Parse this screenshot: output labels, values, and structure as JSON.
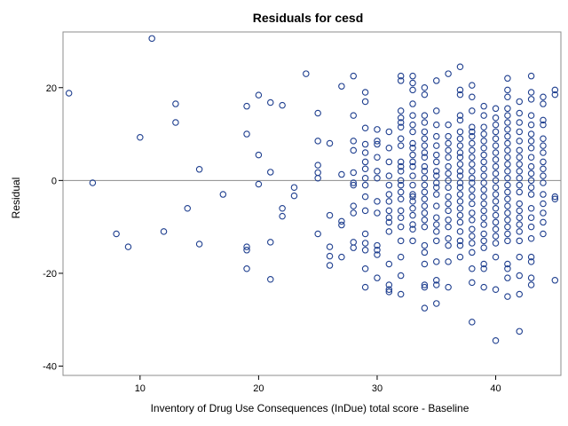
{
  "chart_data": {
    "type": "scatter",
    "title": "Residuals for cesd",
    "xlabel": "Inventory of Drug Use Consequences (InDue) total score - Baseline",
    "ylabel": "Residual",
    "xlim": [
      3.5,
      45.5
    ],
    "ylim": [
      -42,
      32
    ],
    "xticks": [
      10,
      20,
      30,
      40
    ],
    "yticks": [
      -40,
      -20,
      0,
      20
    ],
    "reference_line_y": 0,
    "grid": false,
    "marker_color": "#1f3f8f",
    "points": [
      [
        4,
        18.8
      ],
      [
        6,
        -0.5
      ],
      [
        8,
        -11.5
      ],
      [
        9,
        -14.3
      ],
      [
        10,
        9.3
      ],
      [
        11,
        30.6
      ],
      [
        12,
        -11
      ],
      [
        13,
        16.5
      ],
      [
        13,
        12.5
      ],
      [
        14,
        -6
      ],
      [
        15,
        2.4
      ],
      [
        15,
        -13.7
      ],
      [
        17,
        -3
      ],
      [
        19,
        16
      ],
      [
        19,
        10
      ],
      [
        19,
        -14.3
      ],
      [
        19,
        -15
      ],
      [
        19,
        -19
      ],
      [
        20,
        18.4
      ],
      [
        20,
        5.5
      ],
      [
        20,
        -0.8
      ],
      [
        21,
        16.8
      ],
      [
        21,
        1.8
      ],
      [
        21,
        -13.3
      ],
      [
        21,
        -21.3
      ],
      [
        22,
        16.2
      ],
      [
        22,
        -6
      ],
      [
        22,
        -7.7
      ],
      [
        23,
        -1.5
      ],
      [
        23,
        -3.3
      ],
      [
        24,
        23
      ],
      [
        25,
        14.5
      ],
      [
        25,
        8.5
      ],
      [
        25,
        3.3
      ],
      [
        25,
        1.7
      ],
      [
        25,
        0.5
      ],
      [
        25,
        -11.5
      ],
      [
        26,
        8
      ],
      [
        26,
        -7.5
      ],
      [
        26,
        -14.3
      ],
      [
        26,
        -16.3
      ],
      [
        26,
        -18.3
      ],
      [
        27,
        20.3
      ],
      [
        27,
        1.3
      ],
      [
        27,
        -8.8
      ],
      [
        27,
        -9.6
      ],
      [
        27,
        -16.5
      ],
      [
        28,
        22.5
      ],
      [
        28,
        14
      ],
      [
        28,
        8.5
      ],
      [
        28,
        6.5
      ],
      [
        28,
        1.7
      ],
      [
        28,
        -0.5
      ],
      [
        28,
        -1
      ],
      [
        28,
        -5.5
      ],
      [
        28,
        -7
      ],
      [
        28,
        -13.3
      ],
      [
        28,
        -14.5
      ],
      [
        29,
        19
      ],
      [
        29,
        17
      ],
      [
        29,
        11.3
      ],
      [
        29,
        7.8
      ],
      [
        29,
        6
      ],
      [
        29,
        4
      ],
      [
        29,
        2.5
      ],
      [
        29,
        0.5
      ],
      [
        29,
        -1
      ],
      [
        29,
        -3.5
      ],
      [
        29,
        -6.5
      ],
      [
        29,
        -11.5
      ],
      [
        29,
        -13.5
      ],
      [
        29,
        -15
      ],
      [
        29,
        -19
      ],
      [
        29,
        -23
      ],
      [
        30,
        11
      ],
      [
        30,
        8.5
      ],
      [
        30,
        7.8
      ],
      [
        30,
        5
      ],
      [
        30,
        2
      ],
      [
        30,
        0.5
      ],
      [
        30,
        -4.5
      ],
      [
        30,
        -7
      ],
      [
        30,
        -14
      ],
      [
        30,
        -15
      ],
      [
        30,
        -16
      ],
      [
        30,
        -21
      ],
      [
        31,
        10.5
      ],
      [
        31,
        7
      ],
      [
        31,
        4
      ],
      [
        31,
        1
      ],
      [
        31,
        -1
      ],
      [
        31,
        -3
      ],
      [
        31,
        -4.5
      ],
      [
        31,
        -6.5
      ],
      [
        31,
        -8
      ],
      [
        31,
        -9
      ],
      [
        31,
        -11
      ],
      [
        31,
        -18
      ],
      [
        31,
        -22.5
      ],
      [
        31,
        -23.5
      ],
      [
        31,
        -24
      ],
      [
        32,
        21.5
      ],
      [
        32,
        22.5
      ],
      [
        32,
        15
      ],
      [
        32,
        13.5
      ],
      [
        32,
        12.5
      ],
      [
        32,
        11.5
      ],
      [
        32,
        9
      ],
      [
        32,
        7.5
      ],
      [
        32,
        4
      ],
      [
        32,
        3
      ],
      [
        32,
        2
      ],
      [
        32,
        0
      ],
      [
        32,
        -1
      ],
      [
        32,
        -2.5
      ],
      [
        32,
        -4
      ],
      [
        32,
        -6.5
      ],
      [
        32,
        -8
      ],
      [
        32,
        -10
      ],
      [
        32,
        -13
      ],
      [
        32,
        -16.5
      ],
      [
        32,
        -20.5
      ],
      [
        32,
        -24.5
      ],
      [
        33,
        22.5
      ],
      [
        33,
        21
      ],
      [
        33,
        19.5
      ],
      [
        33,
        16.5
      ],
      [
        33,
        14
      ],
      [
        33,
        12
      ],
      [
        33,
        10.5
      ],
      [
        33,
        8
      ],
      [
        33,
        7
      ],
      [
        33,
        5.5
      ],
      [
        33,
        4
      ],
      [
        33,
        3
      ],
      [
        33,
        1
      ],
      [
        33,
        -1
      ],
      [
        33,
        -3
      ],
      [
        33,
        -3.5
      ],
      [
        33,
        -4.5
      ],
      [
        33,
        -6
      ],
      [
        33,
        -7.5
      ],
      [
        33,
        -9.5
      ],
      [
        33,
        -10.5
      ],
      [
        33,
        -13
      ],
      [
        34,
        20
      ],
      [
        34,
        18.5
      ],
      [
        34,
        14
      ],
      [
        34,
        12.5
      ],
      [
        34,
        10.5
      ],
      [
        34,
        9
      ],
      [
        34,
        7.5
      ],
      [
        34,
        6
      ],
      [
        34,
        5
      ],
      [
        34,
        3
      ],
      [
        34,
        2
      ],
      [
        34,
        0.5
      ],
      [
        34,
        -1
      ],
      [
        34,
        -2.5
      ],
      [
        34,
        -4
      ],
      [
        34,
        -5.5
      ],
      [
        34,
        -7
      ],
      [
        34,
        -8.5
      ],
      [
        34,
        -10
      ],
      [
        34,
        -14
      ],
      [
        34,
        -15.5
      ],
      [
        34,
        -18
      ],
      [
        34,
        -22.5
      ],
      [
        34,
        -23
      ],
      [
        34,
        -27.5
      ],
      [
        35,
        21.5
      ],
      [
        35,
        15
      ],
      [
        35,
        12
      ],
      [
        35,
        9.5
      ],
      [
        35,
        7.5
      ],
      [
        35,
        5.5
      ],
      [
        35,
        4
      ],
      [
        35,
        2
      ],
      [
        35,
        1
      ],
      [
        35,
        -0.5
      ],
      [
        35,
        -1.5
      ],
      [
        35,
        -3
      ],
      [
        35,
        -5.5
      ],
      [
        35,
        -8
      ],
      [
        35,
        -9.5
      ],
      [
        35,
        -11
      ],
      [
        35,
        -13
      ],
      [
        35,
        -17.5
      ],
      [
        35,
        -21.5
      ],
      [
        35,
        -22.5
      ],
      [
        35,
        -26.5
      ],
      [
        36,
        23
      ],
      [
        36,
        12
      ],
      [
        36,
        9.5
      ],
      [
        36,
        8
      ],
      [
        36,
        6.5
      ],
      [
        36,
        5
      ],
      [
        36,
        3
      ],
      [
        36,
        1.5
      ],
      [
        36,
        0
      ],
      [
        36,
        -1.5
      ],
      [
        36,
        -3.5
      ],
      [
        36,
        -5
      ],
      [
        36,
        -6.5
      ],
      [
        36,
        -8.5
      ],
      [
        36,
        -10
      ],
      [
        36,
        -12.5
      ],
      [
        36,
        -14
      ],
      [
        36,
        -17.5
      ],
      [
        36,
        -23
      ],
      [
        37,
        24.5
      ],
      [
        37,
        19.5
      ],
      [
        37,
        18.5
      ],
      [
        37,
        14
      ],
      [
        37,
        13
      ],
      [
        37,
        10.5
      ],
      [
        37,
        9
      ],
      [
        37,
        7.5
      ],
      [
        37,
        6
      ],
      [
        37,
        5
      ],
      [
        37,
        3.5
      ],
      [
        37,
        2
      ],
      [
        37,
        1
      ],
      [
        37,
        -0.5
      ],
      [
        37,
        -1.5
      ],
      [
        37,
        -3
      ],
      [
        37,
        -4.5
      ],
      [
        37,
        -6
      ],
      [
        37,
        -7.5
      ],
      [
        37,
        -9
      ],
      [
        37,
        -11
      ],
      [
        37,
        -13
      ],
      [
        37,
        -14
      ],
      [
        37,
        -16.5
      ],
      [
        38,
        20.5
      ],
      [
        38,
        18
      ],
      [
        38,
        15
      ],
      [
        38,
        11.5
      ],
      [
        38,
        10.5
      ],
      [
        38,
        9.5
      ],
      [
        38,
        8
      ],
      [
        38,
        6.5
      ],
      [
        38,
        5
      ],
      [
        38,
        3.5
      ],
      [
        38,
        2
      ],
      [
        38,
        0.5
      ],
      [
        38,
        -0.5
      ],
      [
        38,
        -2
      ],
      [
        38,
        -3.5
      ],
      [
        38,
        -5
      ],
      [
        38,
        -7
      ],
      [
        38,
        -8.5
      ],
      [
        38,
        -10.5
      ],
      [
        38,
        -12
      ],
      [
        38,
        -13.5
      ],
      [
        38,
        -15.5
      ],
      [
        38,
        -19
      ],
      [
        38,
        -22
      ],
      [
        38,
        -30.5
      ],
      [
        39,
        16
      ],
      [
        39,
        14
      ],
      [
        39,
        11.5
      ],
      [
        39,
        10
      ],
      [
        39,
        8.5
      ],
      [
        39,
        7
      ],
      [
        39,
        5.5
      ],
      [
        39,
        4
      ],
      [
        39,
        2.5
      ],
      [
        39,
        1
      ],
      [
        39,
        -0.5
      ],
      [
        39,
        -2
      ],
      [
        39,
        -3.5
      ],
      [
        39,
        -5
      ],
      [
        39,
        -6.5
      ],
      [
        39,
        -8
      ],
      [
        39,
        -9.5
      ],
      [
        39,
        -11.5
      ],
      [
        39,
        -13
      ],
      [
        39,
        -14.5
      ],
      [
        39,
        -18
      ],
      [
        39,
        -19
      ],
      [
        39,
        -23
      ],
      [
        40,
        15.5
      ],
      [
        40,
        13.5
      ],
      [
        40,
        12
      ],
      [
        40,
        10.5
      ],
      [
        40,
        9
      ],
      [
        40,
        7.5
      ],
      [
        40,
        6
      ],
      [
        40,
        4.5
      ],
      [
        40,
        3
      ],
      [
        40,
        1.5
      ],
      [
        40,
        0
      ],
      [
        40,
        -1.5
      ],
      [
        40,
        -3
      ],
      [
        40,
        -4.5
      ],
      [
        40,
        -6
      ],
      [
        40,
        -7.5
      ],
      [
        40,
        -9
      ],
      [
        40,
        -10.5
      ],
      [
        40,
        -12
      ],
      [
        40,
        -13.5
      ],
      [
        40,
        -16.5
      ],
      [
        40,
        -23.5
      ],
      [
        40,
        -34.5
      ],
      [
        41,
        22
      ],
      [
        41,
        19.5
      ],
      [
        41,
        18
      ],
      [
        41,
        15.5
      ],
      [
        41,
        14
      ],
      [
        41,
        12.5
      ],
      [
        41,
        11
      ],
      [
        41,
        9.5
      ],
      [
        41,
        8
      ],
      [
        41,
        6.5
      ],
      [
        41,
        5
      ],
      [
        41,
        3.5
      ],
      [
        41,
        2
      ],
      [
        41,
        0.5
      ],
      [
        41,
        -1
      ],
      [
        41,
        -2.5
      ],
      [
        41,
        -4
      ],
      [
        41,
        -5.5
      ],
      [
        41,
        -7
      ],
      [
        41,
        -8.5
      ],
      [
        41,
        -10
      ],
      [
        41,
        -11.5
      ],
      [
        41,
        -13
      ],
      [
        41,
        -18
      ],
      [
        41,
        -19
      ],
      [
        41,
        -21
      ],
      [
        41,
        -25
      ],
      [
        42,
        17
      ],
      [
        42,
        14.5
      ],
      [
        42,
        12.5
      ],
      [
        42,
        10.5
      ],
      [
        42,
        8.5
      ],
      [
        42,
        6.5
      ],
      [
        42,
        5
      ],
      [
        42,
        3.5
      ],
      [
        42,
        2
      ],
      [
        42,
        0.5
      ],
      [
        42,
        -1
      ],
      [
        42,
        -2.5
      ],
      [
        42,
        -5
      ],
      [
        42,
        -6.5
      ],
      [
        42,
        -8
      ],
      [
        42,
        -9.5
      ],
      [
        42,
        -11
      ],
      [
        42,
        -13
      ],
      [
        42,
        -16.5
      ],
      [
        42,
        -20.5
      ],
      [
        42,
        -24.5
      ],
      [
        42,
        -32.5
      ],
      [
        43,
        22.5
      ],
      [
        43,
        19
      ],
      [
        43,
        17.5
      ],
      [
        43,
        14
      ],
      [
        43,
        12
      ],
      [
        43,
        10
      ],
      [
        43,
        8.5
      ],
      [
        43,
        7
      ],
      [
        43,
        5
      ],
      [
        43,
        3
      ],
      [
        43,
        1.5
      ],
      [
        43,
        0
      ],
      [
        43,
        -1.5
      ],
      [
        43,
        -3
      ],
      [
        43,
        -6
      ],
      [
        43,
        -8
      ],
      [
        43,
        -10
      ],
      [
        43,
        -12.5
      ],
      [
        43,
        -16.5
      ],
      [
        43,
        -17.5
      ],
      [
        43,
        -21
      ],
      [
        43,
        -22.5
      ],
      [
        44,
        18
      ],
      [
        44,
        16.5
      ],
      [
        44,
        13
      ],
      [
        44,
        12
      ],
      [
        44,
        9
      ],
      [
        44,
        7.5
      ],
      [
        44,
        6
      ],
      [
        44,
        4
      ],
      [
        44,
        2.5
      ],
      [
        44,
        1
      ],
      [
        44,
        -0.5
      ],
      [
        44,
        -3
      ],
      [
        44,
        -5
      ],
      [
        44,
        -7
      ],
      [
        44,
        -9
      ],
      [
        44,
        -11.5
      ],
      [
        45,
        19.5
      ],
      [
        45,
        18.5
      ],
      [
        45,
        -3.5
      ],
      [
        45,
        -4
      ],
      [
        45,
        -21.5
      ]
    ]
  }
}
